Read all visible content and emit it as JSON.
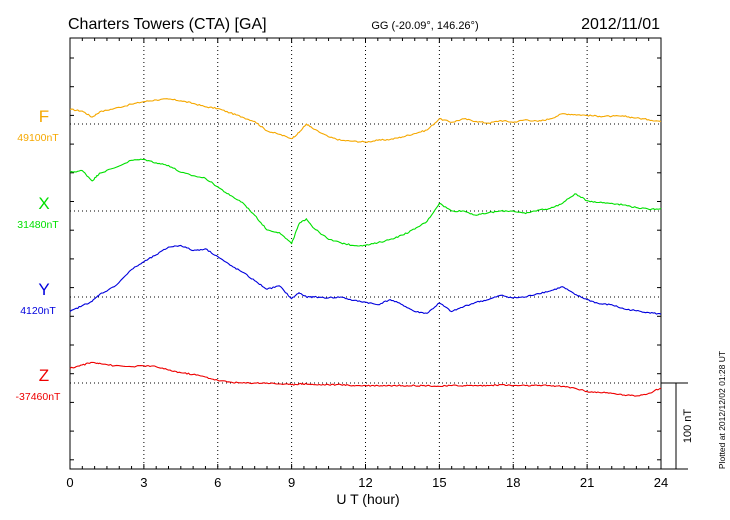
{
  "header": {
    "station": "Charters Towers (CTA)  [GA]",
    "coords": "GG (-20.09°, 146.26°)",
    "date": "2012/11/01"
  },
  "plotted_note": "Plotted at 2012/12/02 01:28 UT",
  "chart_data": {
    "type": "line",
    "title": "Charters Towers (CTA)  [GA]",
    "xlabel": "U T (hour)",
    "xlim": [
      0,
      24
    ],
    "x_ticks": [
      "0",
      "3",
      "6",
      "9",
      "12",
      "15",
      "18",
      "21",
      "24"
    ],
    "scale_bar": {
      "label": "100 nT",
      "value_nT": 100
    },
    "grid": true,
    "legend": "left",
    "series": [
      {
        "name": "F",
        "baseline_label": "49100nT",
        "baseline_nT": 49100,
        "color": "#f5a800",
        "x": [
          0,
          0.5,
          0.9,
          1.2,
          1.8,
          2.5,
          3.0,
          3.5,
          4.0,
          4.5,
          5.0,
          5.5,
          6.0,
          6.5,
          7.0,
          7.5,
          8.0,
          8.5,
          9.0,
          9.3,
          9.6,
          9.9,
          10.5,
          11.0,
          11.5,
          12.0,
          12.5,
          13.0,
          13.5,
          14.0,
          14.5,
          15.0,
          15.5,
          16.0,
          16.5,
          17.0,
          17.5,
          18.0,
          18.5,
          19.0,
          19.5,
          20.0,
          20.5,
          21.0,
          21.5,
          22.0,
          22.5,
          23.0,
          23.5,
          24.0
        ],
        "y": [
          17,
          15,
          8,
          14,
          18,
          23,
          26,
          28,
          29,
          27,
          24,
          20,
          18,
          13,
          8,
          3,
          -8,
          -12,
          -17,
          -10,
          0,
          -6,
          -15,
          -19,
          -20,
          -21,
          -19,
          -18,
          -15,
          -11,
          -7,
          6,
          2,
          6,
          3,
          1,
          4,
          2,
          5,
          3,
          6,
          12,
          11,
          10,
          9,
          9,
          9,
          7,
          5,
          3
        ]
      },
      {
        "name": "X",
        "baseline_label": "31480nT",
        "baseline_nT": 31480,
        "color": "#00e000",
        "x": [
          0,
          0.5,
          0.9,
          1.2,
          1.8,
          2.5,
          3.0,
          3.5,
          4.0,
          4.5,
          5.0,
          5.5,
          6.0,
          6.5,
          7.0,
          7.5,
          8.0,
          8.5,
          9.0,
          9.3,
          9.6,
          9.9,
          10.5,
          11.0,
          11.5,
          12.0,
          12.5,
          13.0,
          13.5,
          14.0,
          14.5,
          15.0,
          15.5,
          16.0,
          16.5,
          17.0,
          17.5,
          18.0,
          18.5,
          19.0,
          19.5,
          20.0,
          20.5,
          21.0,
          21.5,
          22.0,
          22.5,
          23.0,
          23.5,
          24.0
        ],
        "y": [
          45,
          47,
          35,
          44,
          50,
          59,
          60,
          56,
          53,
          45,
          41,
          38,
          28,
          18,
          10,
          -5,
          -22,
          -25,
          -38,
          -15,
          -9,
          -20,
          -33,
          -37,
          -40,
          -40,
          -37,
          -33,
          -28,
          -21,
          -12,
          9,
          0,
          0,
          -5,
          -2,
          0,
          0,
          -3,
          1,
          3,
          9,
          20,
          12,
          10,
          9,
          7,
          4,
          2,
          3
        ]
      },
      {
        "name": "Y",
        "baseline_label": "4120nT",
        "baseline_nT": 4120,
        "color": "#0000dd",
        "x": [
          0,
          0.5,
          0.9,
          1.2,
          1.8,
          2.5,
          3.0,
          3.5,
          4.0,
          4.5,
          5.0,
          5.5,
          6.0,
          6.5,
          7.0,
          7.5,
          8.0,
          8.5,
          9.0,
          9.3,
          9.6,
          9.9,
          10.5,
          11.0,
          11.5,
          12.0,
          12.5,
          13.0,
          13.5,
          14.0,
          14.5,
          15.0,
          15.5,
          16.0,
          16.5,
          17.0,
          17.5,
          18.0,
          18.5,
          19.0,
          19.5,
          20.0,
          20.5,
          21.0,
          21.5,
          22.0,
          22.5,
          23.0,
          23.5,
          24.0
        ],
        "y": [
          -17,
          -10,
          -5,
          3,
          12,
          32,
          41,
          49,
          58,
          60,
          54,
          56,
          47,
          37,
          29,
          19,
          9,
          13,
          -2,
          5,
          0,
          0,
          -1,
          0,
          -4,
          -6,
          -9,
          -3,
          -9,
          -17,
          -19,
          -7,
          -17,
          -11,
          -6,
          -3,
          2,
          -1,
          0,
          4,
          7,
          12,
          3,
          -3,
          -8,
          -9,
          -14,
          -16,
          -18,
          -20
        ]
      },
      {
        "name": "Z",
        "baseline_label": "-37460nT",
        "baseline_nT": -37460,
        "color": "#ee0000",
        "x": [
          0,
          0.5,
          0.9,
          1.2,
          1.8,
          2.5,
          3.0,
          3.5,
          4.0,
          4.5,
          5.0,
          5.5,
          6.0,
          6.5,
          7.0,
          7.5,
          8.0,
          8.5,
          9.0,
          9.3,
          9.6,
          9.9,
          10.5,
          11.0,
          11.5,
          12.0,
          12.5,
          13.0,
          13.5,
          14.0,
          14.5,
          15.0,
          15.5,
          16.0,
          16.5,
          17.0,
          17.5,
          18.0,
          18.5,
          19.0,
          19.5,
          20.0,
          20.5,
          21.0,
          21.5,
          22.0,
          22.5,
          23.0,
          23.5,
          24.0
        ],
        "y": [
          17,
          21,
          24,
          23,
          20,
          19,
          20,
          19,
          15,
          12,
          10,
          7,
          3,
          1,
          0,
          0,
          0,
          -1,
          -2,
          -1,
          -1,
          -2,
          -2,
          -2,
          -3,
          -3,
          -3,
          -3,
          -3,
          -3,
          -3,
          -4,
          -3,
          -3,
          -3,
          -3,
          -2,
          -3,
          -3,
          -3,
          -3,
          -4,
          -6,
          -10,
          -11,
          -12,
          -14,
          -15,
          -12,
          -6
        ]
      }
    ]
  }
}
